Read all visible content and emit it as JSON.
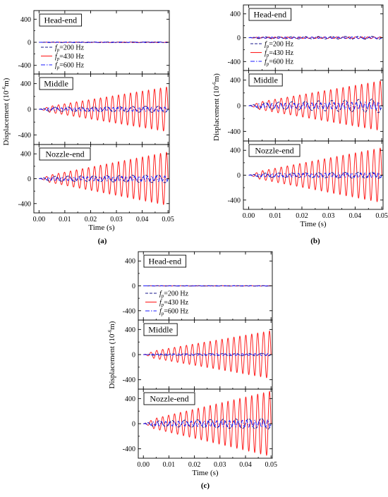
{
  "chart_data": [
    {
      "label": "(a)",
      "type": "line",
      "x": {
        "label": "Time (s)",
        "lim": [
          -0.002,
          0.0505
        ],
        "ticks": [
          "0.00",
          "0.01",
          "0.02",
          "0.03",
          "0.04",
          "0.05"
        ]
      },
      "ylabel_main": "Displacement (10",
      "ylabel_exp": "-6",
      "ylabel_tail": "m)",
      "legend": {
        "placement": "inside top panel, lower-left",
        "entries": [
          "=200 Hz",
          "=430 Hz",
          "=600 Hz"
        ],
        "symbol": "f",
        "subscript": "p"
      },
      "series_styles": [
        {
          "color": "#1a1a8c",
          "dash": "4,2"
        },
        {
          "color": "#ff2020",
          "dash": ""
        },
        {
          "color": "#1a1aff",
          "dash": "6,2,1.5,2"
        }
      ],
      "panels": [
        {
          "title": "Head-end",
          "ylim": [
            -550,
            550
          ],
          "yticks": [
            "400",
            "0",
            "-400"
          ],
          "series": [
            {
              "freq": 200,
              "amp0": 4,
              "amp1": 6
            },
            {
              "freq": 430,
              "amp0": 3,
              "amp1": 6
            },
            {
              "freq": 600,
              "amp0": 3,
              "amp1": 5
            }
          ]
        },
        {
          "title": "Middle",
          "ylim": [
            -550,
            550
          ],
          "yticks": [
            "400",
            "0",
            "-400"
          ],
          "series": [
            {
              "freq": 200,
              "amp0": 30,
              "amp1": 50
            },
            {
              "freq": 430,
              "amp0": 20,
              "amp1": 350
            },
            {
              "freq": 600,
              "amp0": 20,
              "amp1": 35
            }
          ]
        },
        {
          "title": "Nozzle-end",
          "ylim": [
            -550,
            550
          ],
          "yticks": [
            "400",
            "0",
            "-400"
          ],
          "series": [
            {
              "freq": 200,
              "amp0": 35,
              "amp1": 65
            },
            {
              "freq": 430,
              "amp0": 25,
              "amp1": 430
            },
            {
              "freq": 600,
              "amp0": 25,
              "amp1": 45
            }
          ]
        }
      ]
    },
    {
      "label": "(b)",
      "type": "line",
      "x": {
        "label": "Time (s)",
        "lim": [
          -0.002,
          0.0505
        ],
        "ticks": [
          "0.00",
          "0.01",
          "0.02",
          "0.03",
          "0.04",
          "0.05"
        ]
      },
      "ylabel_main": "Displacement (10",
      "ylabel_exp": "-6",
      "ylabel_tail": "m)",
      "legend": {
        "placement": "inside top panel, lower-left",
        "entries": [
          "=200 Hz",
          "=430 Hz",
          "=600 Hz"
        ],
        "symbol": "f",
        "subscript": "p"
      },
      "series_styles": [
        {
          "color": "#1a1a8c",
          "dash": "4,2"
        },
        {
          "color": "#ff2020",
          "dash": ""
        },
        {
          "color": "#1a1aff",
          "dash": "6,2,1.5,2"
        }
      ],
      "panels": [
        {
          "title": "Head-end",
          "ylim": [
            -550,
            550
          ],
          "yticks": [
            "400",
            "0",
            "-400"
          ],
          "series": [
            {
              "freq": 200,
              "amp0": 15,
              "amp1": 25
            },
            {
              "freq": 430,
              "amp0": 10,
              "amp1": 15
            },
            {
              "freq": 600,
              "amp0": 10,
              "amp1": 15
            }
          ]
        },
        {
          "title": "Middle",
          "ylim": [
            -550,
            550
          ],
          "yticks": [
            "400",
            "0",
            "-400"
          ],
          "series": [
            {
              "freq": 200,
              "amp0": 40,
              "amp1": 110
            },
            {
              "freq": 430,
              "amp0": 30,
              "amp1": 390
            },
            {
              "freq": 600,
              "amp0": 30,
              "amp1": 60
            }
          ]
        },
        {
          "title": "Nozzle-end",
          "ylim": [
            -550,
            550
          ],
          "yticks": [
            "400",
            "0",
            "-400"
          ],
          "series": [
            {
              "freq": 200,
              "amp0": 30,
              "amp1": 50
            },
            {
              "freq": 430,
              "amp0": 30,
              "amp1": 440
            },
            {
              "freq": 600,
              "amp0": 25,
              "amp1": 40
            }
          ]
        }
      ]
    },
    {
      "label": "(c)",
      "type": "line",
      "x": {
        "label": "Time (s)",
        "lim": [
          -0.002,
          0.0505
        ],
        "ticks": [
          "0.00",
          "0.01",
          "0.02",
          "0.03",
          "0.04",
          "0.05"
        ]
      },
      "ylabel_main": "Displacement (10",
      "ylabel_exp": "-6",
      "ylabel_tail": "m)",
      "legend": {
        "placement": "inside top panel, lower-left",
        "entries": [
          "=200 Hz",
          "=430 Hz",
          "=600 Hz"
        ],
        "symbol": "f",
        "subscript": "p"
      },
      "series_styles": [
        {
          "color": "#1a1a8c",
          "dash": "4,2"
        },
        {
          "color": "#ff2020",
          "dash": ""
        },
        {
          "color": "#1a1aff",
          "dash": "6,2,1.5,2"
        }
      ],
      "panels": [
        {
          "title": "Head-end",
          "ylim": [
            -550,
            550
          ],
          "yticks": [
            "400",
            "0",
            "-400"
          ],
          "series": [
            {
              "freq": 200,
              "amp0": 2,
              "amp1": 3
            },
            {
              "freq": 430,
              "amp0": 2,
              "amp1": 3
            },
            {
              "freq": 600,
              "amp0": 2,
              "amp1": 3
            }
          ]
        },
        {
          "title": "Middle",
          "ylim": [
            -550,
            550
          ],
          "yticks": [
            "400",
            "0",
            "-400"
          ],
          "series": [
            {
              "freq": 200,
              "amp0": 10,
              "amp1": 20
            },
            {
              "freq": 430,
              "amp0": 30,
              "amp1": 380
            },
            {
              "freq": 600,
              "amp0": 10,
              "amp1": 15
            }
          ]
        },
        {
          "title": "Nozzle-end",
          "ylim": [
            -550,
            550
          ],
          "yticks": [
            "400",
            "0",
            "-400"
          ],
          "series": [
            {
              "freq": 200,
              "amp0": 40,
              "amp1": 90
            },
            {
              "freq": 430,
              "amp0": 40,
              "amp1": 520
            },
            {
              "freq": 600,
              "amp0": 30,
              "amp1": 60
            }
          ]
        }
      ]
    }
  ]
}
